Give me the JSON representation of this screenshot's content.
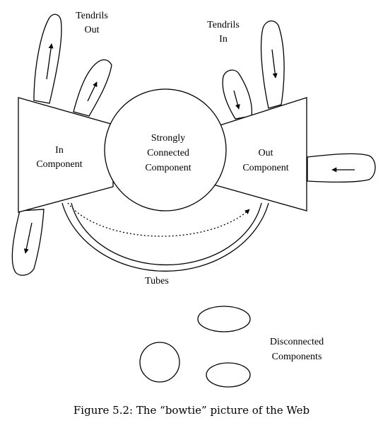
{
  "labels": {
    "tendrils_out": [
      "Tendrils",
      "Out"
    ],
    "tendrils_in": [
      "Tendrils",
      "In"
    ],
    "in_component": [
      "In",
      "Component"
    ],
    "scc": [
      "Strongly",
      "Connected",
      "Component"
    ],
    "out_component": [
      "Out",
      "Component"
    ],
    "tubes": "Tubes",
    "disconnected": [
      "Disconnected",
      "Components"
    ]
  },
  "caption": "Figure 5.2: The “bowtie” picture of the Web"
}
